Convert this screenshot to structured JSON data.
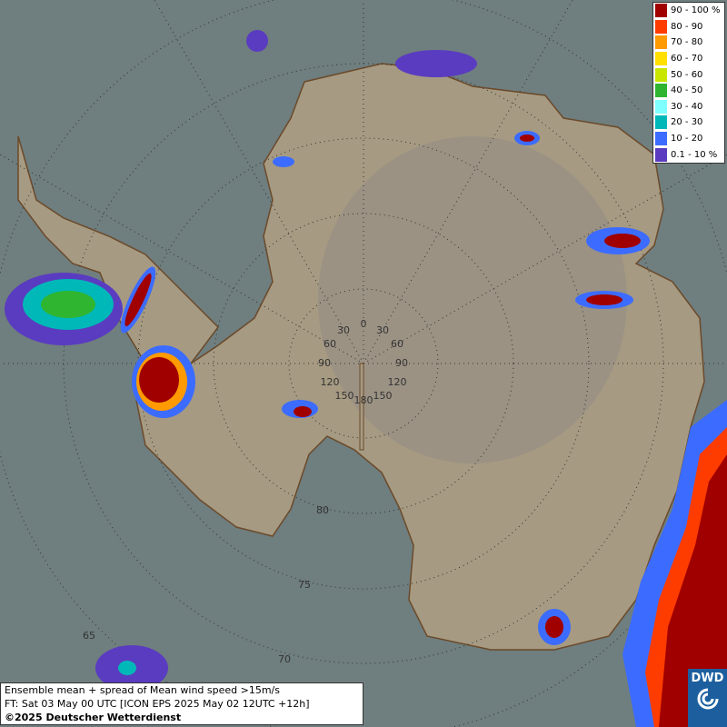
{
  "legend": {
    "entries": [
      {
        "label": "90 - 100 %",
        "color": "#a00000"
      },
      {
        "label": "80 - 90",
        "color": "#ff3c00"
      },
      {
        "label": "70 - 80",
        "color": "#ff9a00"
      },
      {
        "label": "60 - 70",
        "color": "#ffe000"
      },
      {
        "label": "50 - 60",
        "color": "#c8e600"
      },
      {
        "label": "40 - 50",
        "color": "#2fb52f"
      },
      {
        "label": "30 - 40",
        "color": "#7fffff"
      },
      {
        "label": "20 - 30",
        "color": "#00b8b8"
      },
      {
        "label": "10 - 20",
        "color": "#3c6cff"
      },
      {
        "label": "0.1 - 10 %",
        "color": "#5a3cc0"
      }
    ]
  },
  "grid_labels": [
    "0",
    "30",
    "30",
    "60",
    "60",
    "90",
    "90",
    "120",
    "120",
    "150",
    "150",
    "180",
    "80",
    "75",
    "70",
    "65"
  ],
  "info": {
    "lines": [
      "Ensemble mean + spread of Mean wind speed >15m/s",
      "FT: Sat 03 May 00 UTC [ICON EPS 2025 May 02 12UTC +12h]",
      "©2025 Deutscher Wetterdienst"
    ]
  },
  "logo": "DWD"
}
